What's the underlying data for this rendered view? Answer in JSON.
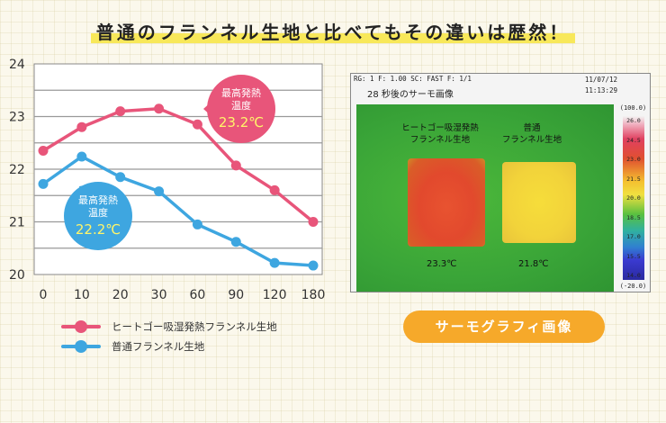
{
  "headline": "普通のフランネル生地と比べてもその違いは歴然！",
  "chart_data": {
    "type": "line",
    "x": [
      "0",
      "10",
      "20",
      "30",
      "60",
      "90",
      "120",
      "180"
    ],
    "ylim": [
      20,
      24
    ],
    "yticks": [
      "24",
      "23",
      "22",
      "21",
      "20"
    ],
    "grid": true,
    "legend_position": "bottom-left",
    "series": [
      {
        "name": "ヒートゴー吸湿発熱フランネル生地",
        "color": "#e8557a",
        "values": [
          22.35,
          22.8,
          23.1,
          23.15,
          22.85,
          22.07,
          21.6,
          21.0
        ]
      },
      {
        "name": "普通フランネル生地",
        "color": "#3ea6e0",
        "values": [
          21.72,
          22.24,
          21.85,
          21.58,
          20.95,
          20.62,
          20.22,
          20.17
        ]
      }
    ],
    "annotations": [
      {
        "series": 0,
        "line1": "最高発熱",
        "line2": "温度",
        "value": "23.2℃",
        "color": "#e8557a"
      },
      {
        "series": 1,
        "line1": "最高発熱",
        "line2": "温度",
        "value": "22.2℃",
        "color": "#3ea6e0"
      }
    ]
  },
  "thermo": {
    "header": "RG: 1  F: 1.00  SC: FAST  F: 1/1",
    "date": "11/07/12",
    "time": "11:13:29",
    "title": "28 秒後のサーモ画像",
    "label_left_1": "ヒートゴー吸湿発熱",
    "label_left_2": "フランネル生地",
    "label_right_1": "普通",
    "label_right_2": "フランネル生地",
    "temp_left": "23.3℃",
    "temp_right": "21.8℃",
    "scale_top": "(100.0)",
    "scale_bottom": "(-20.0)",
    "scale_ticks": [
      "26.0",
      "24.5",
      "23.0",
      "21.5",
      "20.0",
      "18.5",
      "17.0",
      "15.5",
      "14.0"
    ]
  },
  "pill_label": "サーモグラフィ画像"
}
